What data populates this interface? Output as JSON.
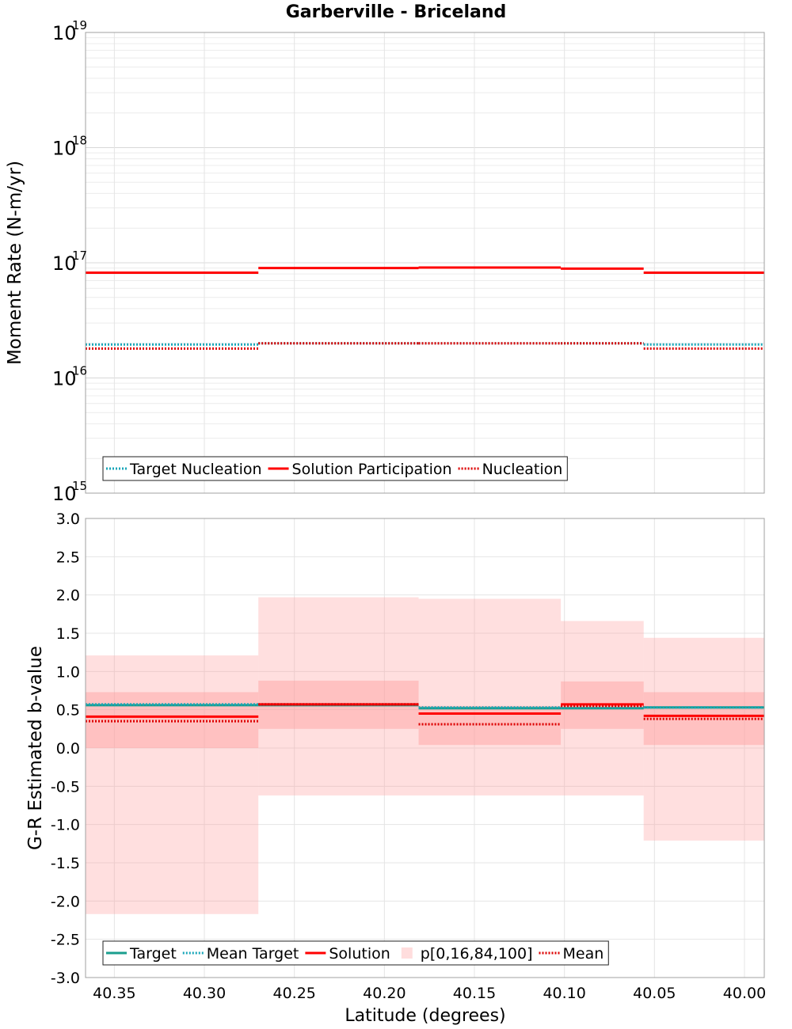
{
  "chart_data": {
    "title": "Garberville - Briceland",
    "xlabel": "Latitude (degrees)",
    "xlim": [
      40.366,
      39.989
    ],
    "xticks": [
      "40.35",
      "40.30",
      "40.25",
      "40.20",
      "40.15",
      "40.10",
      "40.05",
      "40.00"
    ],
    "xtick_values": [
      40.35,
      40.3,
      40.25,
      40.2,
      40.15,
      40.1,
      40.05,
      40.0
    ],
    "segments": [
      {
        "lat_start": 40.366,
        "lat_end": 40.27
      },
      {
        "lat_start": 40.27,
        "lat_end": 40.181
      },
      {
        "lat_start": 40.181,
        "lat_end": 40.102
      },
      {
        "lat_start": 40.102,
        "lat_end": 40.056
      },
      {
        "lat_start": 40.056,
        "lat_end": 39.989
      }
    ],
    "panels": [
      {
        "type": "line",
        "ylabel": "Moment Rate (N-m/yr)",
        "yscale": "log",
        "ylim": [
          1000000000000000.0,
          1e+19
        ],
        "yticks": [
          {
            "base": "10",
            "exp": "15",
            "value": 1000000000000000.0
          },
          {
            "base": "10",
            "exp": "16",
            "value": 1e+16
          },
          {
            "base": "10",
            "exp": "17",
            "value": 1e+17
          },
          {
            "base": "10",
            "exp": "18",
            "value": 1e+18
          },
          {
            "base": "10",
            "exp": "19",
            "value": 1e+19
          }
        ],
        "grid": true,
        "legend_position": "lower-left",
        "series": [
          {
            "name": "Target Nucleation",
            "style": "dotted",
            "color": "#17a6b8",
            "values": [
              1.95e+16,
              2e+16,
              2e+16,
              2e+16,
              1.95e+16
            ]
          },
          {
            "name": "Solution Participation",
            "style": "solid",
            "color": "#ff0000",
            "values": [
              8.2e+16,
              9e+16,
              9.1e+16,
              8.9e+16,
              8.2e+16
            ]
          },
          {
            "name": "Nucleation",
            "style": "dotted",
            "color": "#dd0000",
            "values": [
              1.8e+16,
              2e+16,
              2e+16,
              2e+16,
              1.8e+16
            ]
          }
        ]
      },
      {
        "type": "line",
        "ylabel": "G-R Estimated b-value",
        "yscale": "linear",
        "ylim": [
          -3.0,
          3.0
        ],
        "yticks": [
          "3.0",
          "2.5",
          "2.0",
          "1.5",
          "1.0",
          "0.5",
          "0.0",
          "-0.5",
          "-1.0",
          "-1.5",
          "-2.0",
          "-2.5",
          "-3.0"
        ],
        "ytick_values": [
          3.0,
          2.5,
          2.0,
          1.5,
          1.0,
          0.5,
          0.0,
          -0.5,
          -1.0,
          -1.5,
          -2.0,
          -2.5,
          -3.0
        ],
        "grid": true,
        "legend_position": "lower-left",
        "bands": {
          "name": "p[0,16,84,100]",
          "color": "#ff9e9e",
          "p0": [
            -2.17,
            -0.62,
            -0.62,
            -0.62,
            -1.21
          ],
          "p16": [
            0.0,
            0.25,
            0.04,
            0.25,
            0.04
          ],
          "p84": [
            0.73,
            0.88,
            0.55,
            0.87,
            0.73
          ],
          "p100": [
            1.21,
            1.97,
            1.95,
            1.66,
            1.44
          ]
        },
        "series": [
          {
            "name": "Target",
            "style": "solid",
            "color": "#1a9e8e",
            "values": [
              0.56,
              0.56,
              0.52,
              0.52,
              0.53
            ]
          },
          {
            "name": "Mean Target",
            "style": "dotted",
            "color": "#17a6b8",
            "values": [
              0.57,
              0.57,
              0.53,
              0.53,
              0.53
            ]
          },
          {
            "name": "Solution",
            "style": "solid",
            "color": "#ff0000",
            "values": [
              0.41,
              0.57,
              0.45,
              0.57,
              0.42
            ]
          },
          {
            "name": "Mean",
            "style": "dotted",
            "color": "#dd0000",
            "values": [
              0.35,
              0.57,
              0.31,
              0.55,
              0.38
            ]
          }
        ]
      }
    ]
  }
}
